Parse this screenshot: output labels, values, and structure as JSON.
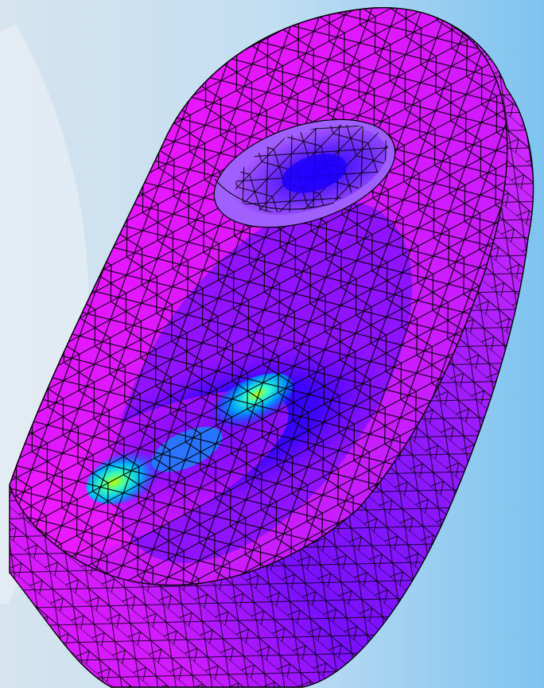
{
  "view": {
    "background_gradient": [
      "#d6e4ee",
      "#c2def2",
      "#7ec3f0"
    ],
    "background_swirl": "#eef3f7"
  },
  "model": {
    "shape": "cylindrical part with counterbored hole",
    "mesh_line_color": "#000000",
    "stress_colormap": [
      "#ff10ff",
      "#b41cff",
      "#5a00ff",
      "#1400ff",
      "#0078ff",
      "#34e6ff",
      "#7cff3a"
    ],
    "hole_shading": [
      "#a85cff",
      "#6a28ff",
      "#2400ff"
    ]
  }
}
